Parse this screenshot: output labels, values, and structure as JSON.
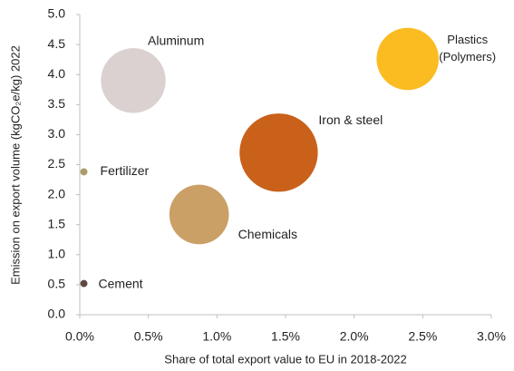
{
  "chart_data": {
    "type": "bubble",
    "x_label": "Share of total export value to EU in 2018-2022",
    "y_label": "Emission on export volume (kgCO₂e/kg) 2022",
    "xlim": [
      0,
      3.0
    ],
    "xticks": [
      {
        "value": 0,
        "label": "0.0%"
      },
      {
        "value": 0.5,
        "label": "0.5%"
      },
      {
        "value": 1.0,
        "label": "1.0%"
      },
      {
        "value": 1.5,
        "label": "1.5%"
      },
      {
        "value": 2.0,
        "label": "2.0%"
      },
      {
        "value": 2.5,
        "label": "2.5%"
      },
      {
        "value": 3.0,
        "label": "3.0%"
      }
    ],
    "ylim": [
      0,
      5.0
    ],
    "yticks": [
      {
        "value": 0,
        "label": "0.0"
      },
      {
        "value": 0.5,
        "label": "0.5"
      },
      {
        "value": 1.0,
        "label": "1.0"
      },
      {
        "value": 1.5,
        "label": "1.5"
      },
      {
        "value": 2.0,
        "label": "2.0"
      },
      {
        "value": 2.5,
        "label": "2.5"
      },
      {
        "value": 3.0,
        "label": "3.0"
      },
      {
        "value": 3.5,
        "label": "3.5"
      },
      {
        "value": 4.0,
        "label": "4.0"
      },
      {
        "value": 4.5,
        "label": "4.5"
      },
      {
        "value": 5.0,
        "label": "5.0"
      }
    ],
    "grid": false,
    "series": [
      {
        "name": "Aluminum",
        "color": "#dad1d0",
        "x": [
          0.39
        ],
        "values": [
          3.9
        ],
        "sizes": [
          13
        ]
      },
      {
        "name": "Plastics (Polymers)",
        "color": "#fbbc22",
        "x": [
          2.39
        ],
        "values": [
          4.26
        ],
        "sizes": [
          12
        ]
      },
      {
        "name": "Iron & steel",
        "color": "#c9611b",
        "x": [
          1.45
        ],
        "values": [
          2.7
        ],
        "sizes": [
          19
        ]
      },
      {
        "name": "Chemicals",
        "color": "#caa066",
        "x": [
          0.87
        ],
        "values": [
          1.67
        ],
        "sizes": [
          11
        ]
      },
      {
        "name": "Fertilizer",
        "color": "#aa9c6b",
        "x": [
          0.03
        ],
        "values": [
          2.38
        ],
        "sizes": [
          0.16
        ]
      },
      {
        "name": "Cement",
        "color": "#5e4a40",
        "x": [
          0.03
        ],
        "values": [
          0.52
        ],
        "sizes": [
          0.16
        ]
      }
    ]
  }
}
